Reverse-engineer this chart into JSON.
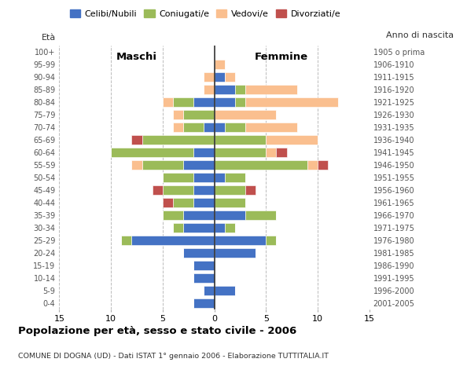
{
  "age_groups": [
    "0-4",
    "5-9",
    "10-14",
    "15-19",
    "20-24",
    "25-29",
    "30-34",
    "35-39",
    "40-44",
    "45-49",
    "50-54",
    "55-59",
    "60-64",
    "65-69",
    "70-74",
    "75-79",
    "80-84",
    "85-89",
    "90-94",
    "95-99",
    "100+"
  ],
  "birth_years": [
    "2001-2005",
    "1996-2000",
    "1991-1995",
    "1986-1990",
    "1981-1985",
    "1976-1980",
    "1971-1975",
    "1966-1970",
    "1961-1965",
    "1956-1960",
    "1951-1955",
    "1946-1950",
    "1941-1945",
    "1936-1940",
    "1931-1935",
    "1926-1930",
    "1921-1925",
    "1916-1920",
    "1911-1915",
    "1906-1910",
    "1905 o prima"
  ],
  "colors": {
    "celibe": "#4472C4",
    "coniugato": "#9BBB59",
    "vedovo": "#FABF8F",
    "divorziato": "#C0504D"
  },
  "maschi": {
    "celibe": [
      2,
      1,
      2,
      2,
      3,
      8,
      3,
      3,
      2,
      2,
      2,
      3,
      2,
      0,
      1,
      0,
      2,
      0,
      0,
      0,
      0
    ],
    "coniugato": [
      0,
      0,
      0,
      0,
      0,
      1,
      1,
      2,
      2,
      3,
      3,
      4,
      8,
      7,
      2,
      3,
      2,
      0,
      0,
      0,
      0
    ],
    "vedovo": [
      0,
      0,
      0,
      0,
      0,
      0,
      0,
      0,
      0,
      0,
      0,
      1,
      0,
      0,
      1,
      1,
      1,
      1,
      1,
      0,
      0
    ],
    "divorziato": [
      0,
      0,
      0,
      0,
      0,
      0,
      0,
      0,
      1,
      1,
      0,
      0,
      0,
      1,
      0,
      0,
      0,
      0,
      0,
      0,
      0
    ]
  },
  "femmine": {
    "celibe": [
      0,
      2,
      0,
      0,
      4,
      5,
      1,
      3,
      0,
      0,
      1,
      0,
      0,
      0,
      1,
      0,
      2,
      2,
      1,
      0,
      0
    ],
    "coniugato": [
      0,
      0,
      0,
      0,
      0,
      1,
      1,
      3,
      3,
      3,
      2,
      9,
      5,
      5,
      2,
      0,
      1,
      1,
      0,
      0,
      0
    ],
    "vedovo": [
      0,
      0,
      0,
      0,
      0,
      0,
      0,
      0,
      0,
      0,
      0,
      1,
      1,
      5,
      5,
      6,
      9,
      5,
      1,
      1,
      0
    ],
    "divorziato": [
      0,
      0,
      0,
      0,
      0,
      0,
      0,
      0,
      0,
      1,
      0,
      1,
      1,
      0,
      0,
      0,
      0,
      0,
      0,
      0,
      0
    ]
  },
  "title": "Popolazione per età, sesso e stato civile - 2006",
  "subtitle": "COMUNE DI DOGNA (UD) - Dati ISTAT 1° gennaio 2006 - Elaborazione TUTTITALIA.IT",
  "label_eta": "Età",
  "label_anno": "Anno di nascita",
  "label_maschi": "Maschi",
  "label_femmine": "Femmine",
  "legend_labels": [
    "Celibi/Nubili",
    "Coniugati/e",
    "Vedovi/e",
    "Divorziati/e"
  ],
  "xlim": 15,
  "background_color": "#ffffff",
  "grid_color": "#bbbbbb"
}
